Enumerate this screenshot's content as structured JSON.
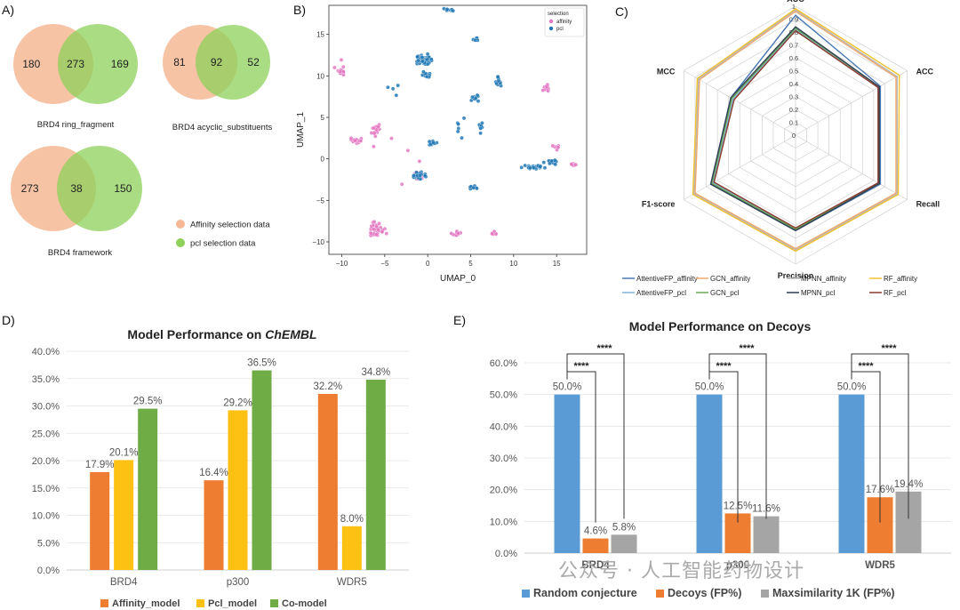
{
  "panels": {
    "A": "A)",
    "B": "B)",
    "C": "C)",
    "D": "D)",
    "E": "E)"
  },
  "venn": {
    "diagrams": [
      {
        "left": "180",
        "mid": "273",
        "right": "169",
        "caption": "BRD4 ring_fragment"
      },
      {
        "left": "81",
        "mid": "92",
        "right": "52",
        "caption": "BRD4 acyclic_substituents"
      },
      {
        "left": "273",
        "mid": "38",
        "right": "150",
        "caption": "BRD4 framework"
      }
    ],
    "legend": [
      {
        "label": "Affinity selection data",
        "color": "#f5b895"
      },
      {
        "label": "pcl selection data",
        "color": "#8ed05a"
      }
    ],
    "colors": {
      "left": "#f5b895",
      "right": "#8ed05a",
      "overlap": "#b8c46a"
    }
  },
  "umap": {
    "xlabel": "UMAP_0",
    "ylabel": "UMAP_1",
    "legend_title": "selection",
    "series": [
      {
        "name": "affinity",
        "color": "#e377c2"
      },
      {
        "name": "pcl",
        "color": "#1f77b4"
      }
    ],
    "xticks": [
      "−10",
      "−5",
      "0",
      "5",
      "10",
      "15"
    ],
    "yticks": [
      "15",
      "10",
      "5",
      "0",
      "−5",
      "−10"
    ]
  },
  "radar": {
    "axes": [
      "AUC",
      "ACC",
      "Recall",
      "Precision",
      "F1-score",
      "MCC"
    ],
    "ticks": [
      "0",
      "0.1",
      "0.2",
      "0.3",
      "0.4",
      "0.5",
      "0.6",
      "0.7",
      "0.8",
      "0.9",
      "1"
    ],
    "series": [
      {
        "name": "AttentiveFP_affinity",
        "color": "#4a78b5",
        "values": [
          0.93,
          0.76,
          0.76,
          0.74,
          0.76,
          0.58
        ]
      },
      {
        "name": "GCN_affinity",
        "color": "#f2a768",
        "values": [
          0.96,
          0.9,
          0.9,
          0.88,
          0.9,
          0.86
        ]
      },
      {
        "name": "MPNN_affinity",
        "color": "#b8b8b8",
        "values": [
          0.97,
          0.91,
          0.91,
          0.89,
          0.91,
          0.87
        ]
      },
      {
        "name": "RF_affinity",
        "color": "#f2c230",
        "values": [
          0.98,
          0.93,
          0.92,
          0.9,
          0.92,
          0.88
        ]
      },
      {
        "name": "AttentiveFP_pcl",
        "color": "#7fb3d8",
        "values": [
          0.82,
          0.74,
          0.74,
          0.72,
          0.74,
          0.56
        ]
      },
      {
        "name": "GCN_pcl",
        "color": "#6aaa55",
        "values": [
          0.83,
          0.75,
          0.75,
          0.73,
          0.75,
          0.57
        ]
      },
      {
        "name": "MPNN_pcl",
        "color": "#2e3d52",
        "values": [
          0.84,
          0.75,
          0.75,
          0.74,
          0.76,
          0.58
        ]
      },
      {
        "name": "RF_pcl",
        "color": "#8c3b2e",
        "values": [
          0.81,
          0.74,
          0.74,
          0.72,
          0.73,
          0.55
        ]
      }
    ]
  },
  "chart_data": [
    {
      "type": "bar",
      "title_prefix": "Model Performance on ",
      "title_em": "ChEMBL",
      "categories": [
        "BRD4",
        "p300",
        "WDR5"
      ],
      "series": [
        {
          "name": "Affinity_model",
          "color": "#ee7d31",
          "values": [
            17.9,
            16.4,
            32.2
          ],
          "labels": [
            "17.9%",
            "16.4%",
            "32.2%"
          ]
        },
        {
          "name": "Pcl_model",
          "color": "#fdc113",
          "values": [
            20.1,
            29.2,
            8.0
          ],
          "labels": [
            "20.1%",
            "29.2%",
            "8.0%"
          ]
        },
        {
          "name": "Co-model",
          "color": "#6fac46",
          "values": [
            29.5,
            36.5,
            34.8
          ],
          "labels": [
            "29.5%",
            "36.5%",
            "34.8%"
          ]
        }
      ],
      "ylim": [
        0,
        40
      ],
      "yticks": [
        "0.0%",
        "5.0%",
        "10.0%",
        "15.0%",
        "20.0%",
        "25.0%",
        "30.0%",
        "35.0%",
        "40.0%"
      ]
    },
    {
      "type": "bar",
      "title": "Model Performance on Decoys",
      "categories": [
        "BRD4",
        "p300",
        "WDR5"
      ],
      "series": [
        {
          "name": "Random conjecture",
          "color": "#5b9bd5",
          "values": [
            50.0,
            50.0,
            50.0
          ],
          "labels": [
            "50.0%",
            "50.0%",
            "50.0%"
          ]
        },
        {
          "name": "Decoys (FP%)",
          "color": "#ee7d31",
          "values": [
            4.6,
            12.5,
            17.6
          ],
          "labels": [
            "4.6%",
            "12.5%",
            "17.6%"
          ]
        },
        {
          "name": "Maxsimilarity 1K (FP%)",
          "color": "#a5a5a5",
          "values": [
            5.8,
            11.6,
            19.4
          ],
          "labels": [
            "5.8%",
            "11.6%",
            "19.4%"
          ]
        }
      ],
      "ylim": [
        0,
        60
      ],
      "yticks": [
        "0.0%",
        "10.0%",
        "20.0%",
        "30.0%",
        "40.0%",
        "50.0%",
        "60.0%"
      ],
      "significance": "****"
    }
  ],
  "watermark": "公众号 · 人工智能药物设计"
}
